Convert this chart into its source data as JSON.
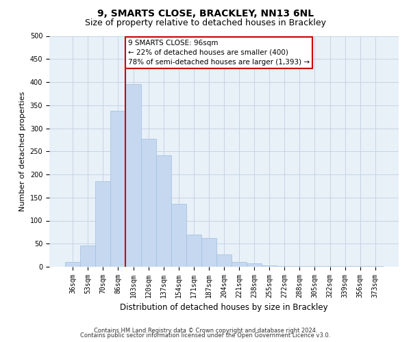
{
  "title": "9, SMARTS CLOSE, BRACKLEY, NN13 6NL",
  "subtitle": "Size of property relative to detached houses in Brackley",
  "xlabel": "Distribution of detached houses by size in Brackley",
  "ylabel": "Number of detached properties",
  "bar_labels": [
    "36sqm",
    "53sqm",
    "70sqm",
    "86sqm",
    "103sqm",
    "120sqm",
    "137sqm",
    "154sqm",
    "171sqm",
    "187sqm",
    "204sqm",
    "221sqm",
    "238sqm",
    "255sqm",
    "272sqm",
    "288sqm",
    "305sqm",
    "322sqm",
    "339sqm",
    "356sqm",
    "373sqm"
  ],
  "bar_values": [
    10,
    46,
    185,
    338,
    395,
    277,
    242,
    137,
    70,
    62,
    26,
    10,
    7,
    3,
    2,
    1,
    1,
    1,
    1,
    1,
    2
  ],
  "bar_color": "#c5d8f0",
  "bar_edgecolor": "#a0bedd",
  "vline_color": "#cc0000",
  "vline_index": 3.5,
  "ylim": [
    0,
    500
  ],
  "yticks": [
    0,
    50,
    100,
    150,
    200,
    250,
    300,
    350,
    400,
    450,
    500
  ],
  "annotation_title": "9 SMARTS CLOSE: 96sqm",
  "annotation_line1": "← 22% of detached houses are smaller (400)",
  "annotation_line2": "78% of semi-detached houses are larger (1,393) →",
  "annotation_box_facecolor": "#ffffff",
  "annotation_box_edgecolor": "#cc0000",
  "footer_line1": "Contains HM Land Registry data © Crown copyright and database right 2024.",
  "footer_line2": "Contains public sector information licensed under the Open Government Licence v3.0.",
  "background_color": "#ffffff",
  "plot_bg_color": "#e8f0f8",
  "grid_color": "#c0d0e0",
  "title_fontsize": 10,
  "subtitle_fontsize": 9,
  "ylabel_fontsize": 8,
  "xlabel_fontsize": 8.5,
  "tick_fontsize": 7,
  "footer_fontsize": 6,
  "annot_fontsize": 7.5
}
